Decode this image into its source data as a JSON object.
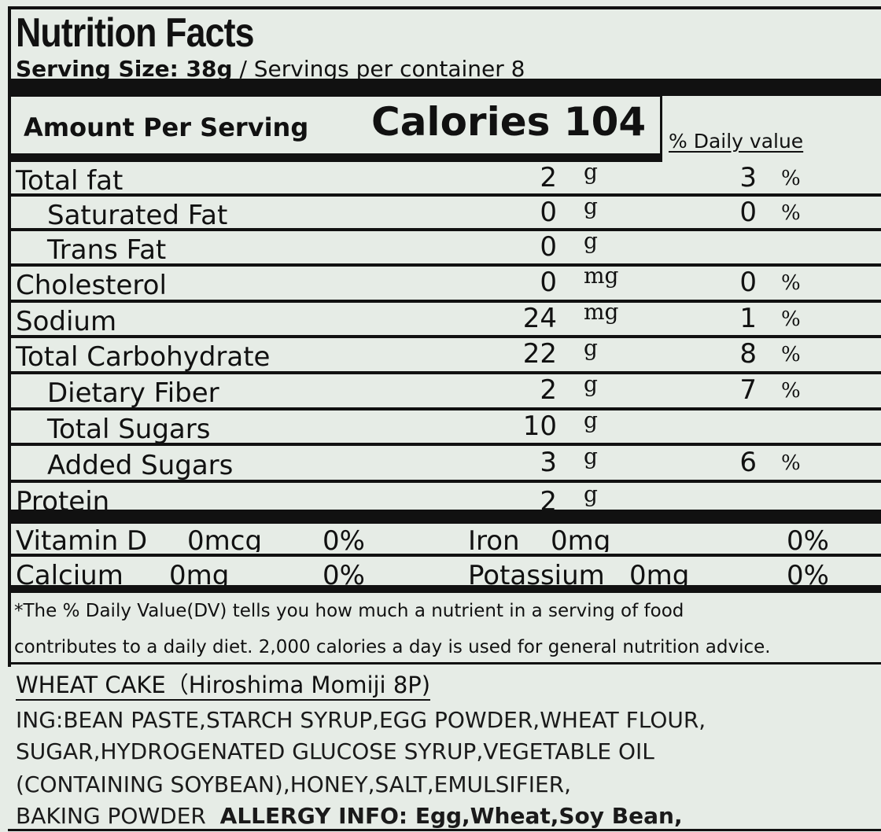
{
  "title": "Nutrition Facts",
  "serving": {
    "size_label": "Serving Size: 38g",
    "per_container": " / Servings per container 8"
  },
  "amount_per_serving": "Amount Per Serving",
  "calories": "Calories 104",
  "daily_value_header": "% Daily value",
  "nutrients": [
    {
      "name": "Total fat",
      "amount": "2",
      "unit": "g",
      "dv": "3",
      "pct": "%"
    },
    {
      "name": "Saturated Fat",
      "amount": "0",
      "unit": "g",
      "dv": "0",
      "pct": "%"
    },
    {
      "name": "Trans Fat",
      "amount": "0",
      "unit": "g",
      "dv": "",
      "pct": ""
    },
    {
      "name": "Cholesterol",
      "amount": "0",
      "unit": "mg",
      "dv": "0",
      "pct": "%"
    },
    {
      "name": "Sodium",
      "amount": "24",
      "unit": "mg",
      "dv": "1",
      "pct": "%"
    },
    {
      "name": "Total Carbohydrate",
      "amount": "22",
      "unit": "g",
      "dv": "8",
      "pct": "%"
    },
    {
      "name": "Dietary Fiber",
      "amount": "2",
      "unit": "g",
      "dv": "7",
      "pct": "%"
    },
    {
      "name": "Total Sugars",
      "amount": "10",
      "unit": "g",
      "dv": "",
      "pct": ""
    },
    {
      "name": "Added Sugars",
      "amount": "3",
      "unit": "g",
      "dv": "6",
      "pct": "%"
    },
    {
      "name": "Protein",
      "amount": "2",
      "unit": "g",
      "dv": "",
      "pct": ""
    }
  ],
  "vitamins": [
    {
      "name": "Vitamin D",
      "amount": "0mcg",
      "dv": "0%"
    },
    {
      "name": "Iron",
      "amount": "0mg",
      "dv": "0%"
    },
    {
      "name": "Calcium",
      "amount": "0mg",
      "dv": "0%"
    },
    {
      "name": "Potassium",
      "amount": "0mg",
      "dv": "0%"
    }
  ],
  "footnote": {
    "line1": "*The % Daily Value(DV) tells you how much a nutrient in a serving of food",
    "line2": "contributes to a daily diet. 2,000 calories a day is used for general nutrition advice."
  },
  "product_name": "WHEAT CAKE（Hiroshima Momiji  8P)",
  "ingredients": {
    "line1": "ING:BEAN PASTE,STARCH SYRUP,EGG POWDER,WHEAT FLOUR,",
    "line2": "SUGAR,HYDROGENATED GLUCOSE SYRUP,VEGETABLE OIL",
    "line3": "(CONTAINING SOYBEAN),HONEY,SALT,EMULSIFIER,",
    "line4": "BAKING POWDER",
    "allergy": "ALLERGY INFO: Egg,Wheat,Soy Bean,"
  }
}
